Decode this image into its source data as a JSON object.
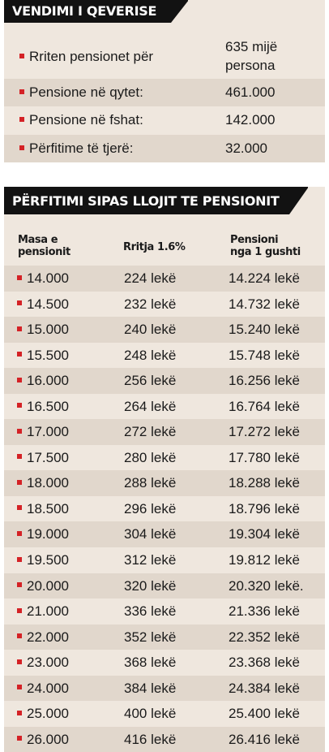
{
  "summary": {
    "title": "VENDIMI I QEVERISE",
    "rows": [
      {
        "label": "Rriten pensionet për",
        "value_line1": "635 mijë",
        "value_line2": "persona"
      },
      {
        "label": "Pensione në qytet:",
        "value": "461.000"
      },
      {
        "label": "Pensione në fshat:",
        "value": "142.000"
      },
      {
        "label": "Përfitime të tjerë:",
        "value": "32.000"
      }
    ]
  },
  "table": {
    "title": "PËRFITIMI SIPAS LLOJIT TE PENSIONIT",
    "headers": {
      "col1_line1": "Masa e",
      "col1_line2": "pensionit",
      "col2": "Rritja 1.6%",
      "col3_line1": "Pensioni",
      "col3_line2": "nga 1 gushti"
    },
    "rows": [
      [
        "14.000",
        "224 lekë",
        "14.224 lekë"
      ],
      [
        "14.500",
        "232 lekë",
        "14.732 lekë"
      ],
      [
        "15.000",
        "240 lekë",
        "15.240 lekë"
      ],
      [
        "15.500",
        "248 lekë",
        "15.748 lekë"
      ],
      [
        "16.000",
        "256 lekë",
        "16.256 lekë"
      ],
      [
        "16.500",
        "264 lekë",
        "16.764 lekë"
      ],
      [
        "17.000",
        "272 lekë",
        "17.272 lekë"
      ],
      [
        "17.500",
        "280 lekë",
        "17.780 lekë"
      ],
      [
        "18.000",
        "288 lekë",
        "18.288 lekë"
      ],
      [
        "18.500",
        "296 lekë",
        "18.796 lekë"
      ],
      [
        "19.000",
        "304 lekë",
        "19.304 lekë"
      ],
      [
        "19.500",
        "312 lekë",
        "19.812 lekë"
      ],
      [
        "20.000",
        "320 lekë",
        "20.320 lekë."
      ],
      [
        "21.000",
        "336 lekë",
        "21.336 lekë"
      ],
      [
        "22.000",
        "352 lekë",
        "22.352 lekë"
      ],
      [
        "23.000",
        "368 lekë",
        "23.368 lekë"
      ],
      [
        "24.000",
        "384 lekë",
        "24.384 lekë"
      ],
      [
        "25.000",
        "400 lekë",
        "25.400 lekë"
      ],
      [
        "26.000",
        "416 lekë",
        "26.416 lekë"
      ]
    ]
  },
  "colors": {
    "banner": "#121212",
    "panel": "#efe7de",
    "stripe": "#e1d7cc",
    "bullet": "#d42226"
  }
}
